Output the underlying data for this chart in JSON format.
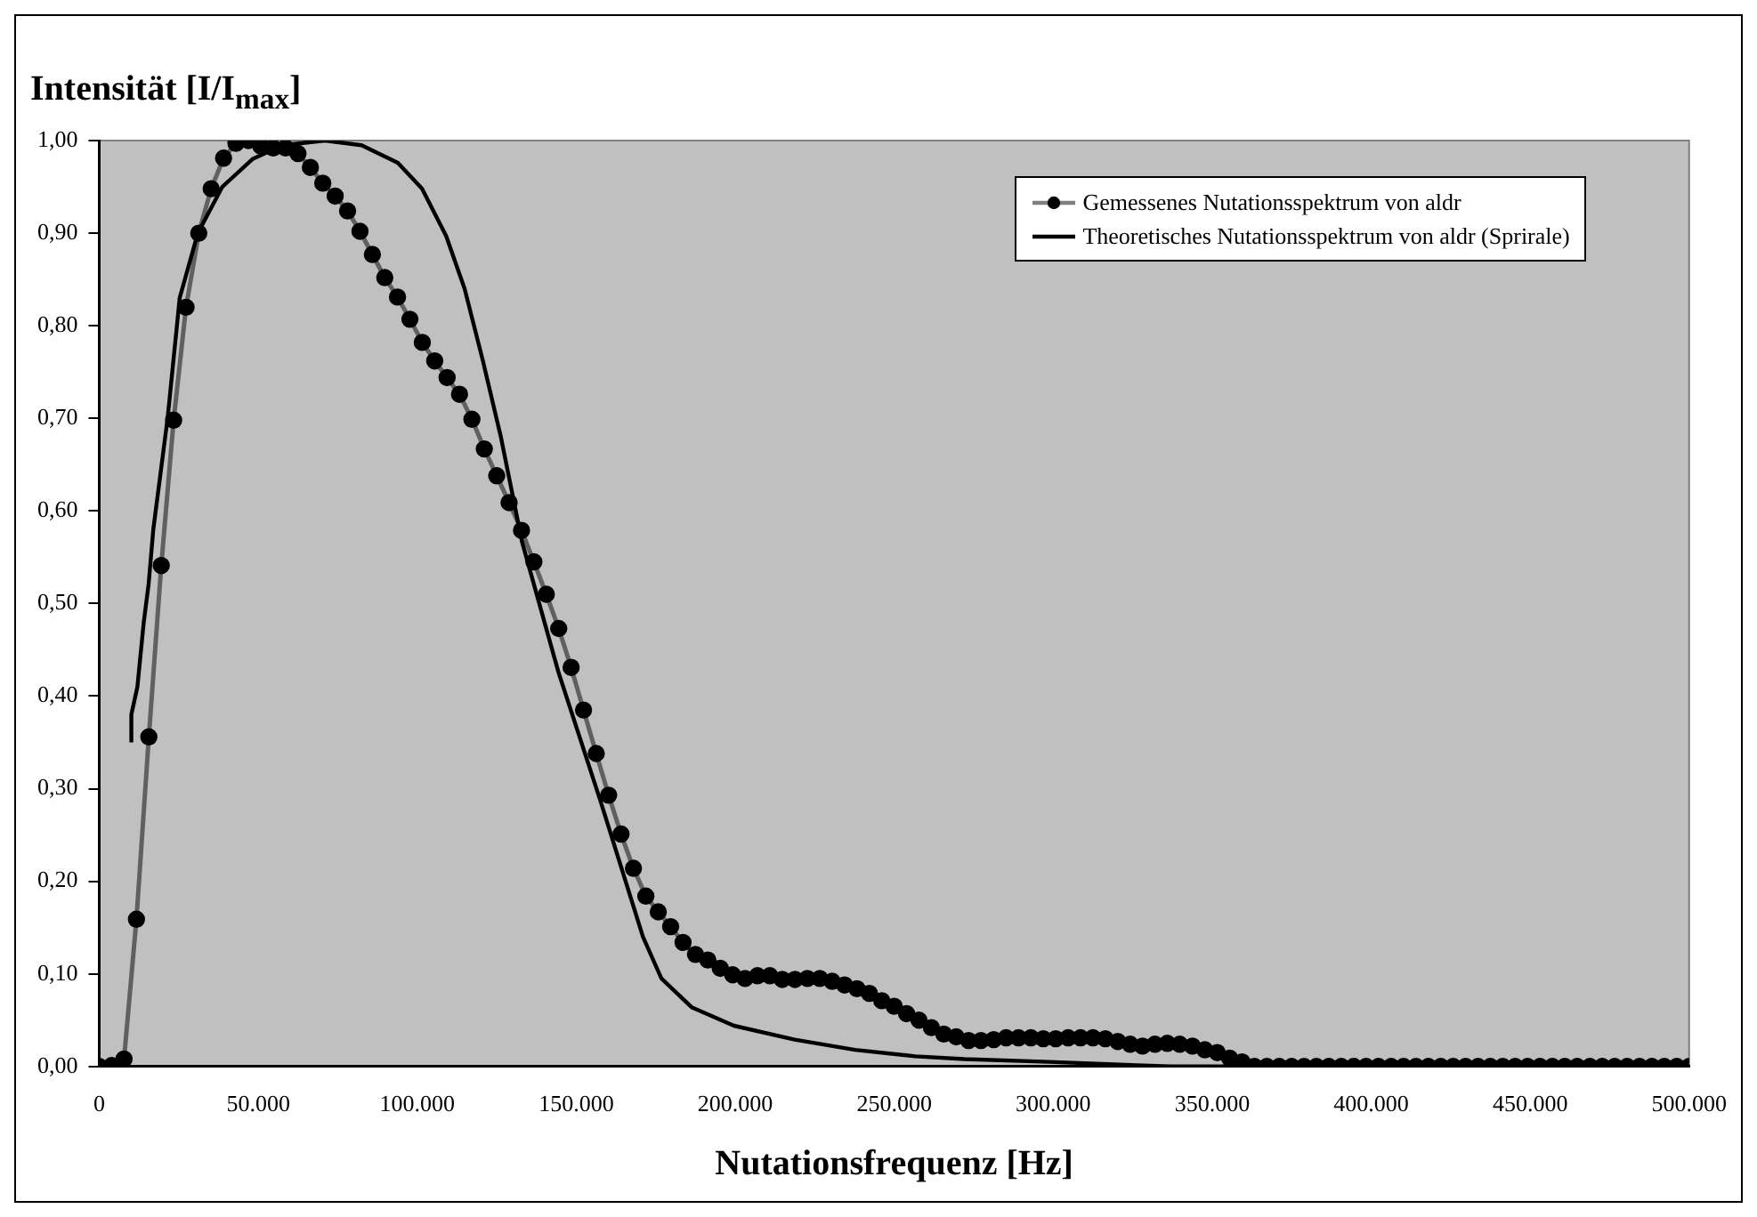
{
  "chart_data": {
    "type": "line",
    "ylabel": "Intensität [I/I$_{max}$]",
    "xlabel": "Nutationsfrequenz [Hz]",
    "xlim": [
      0,
      500000
    ],
    "xticks": [
      0,
      {
        "value": 50000,
        "label": "50.000"
      },
      {
        "value": 100000,
        "label": "100.000"
      },
      {
        "value": 150000,
        "label": "150.000"
      },
      {
        "value": 200000,
        "label": "200.000"
      },
      {
        "value": 250000,
        "label": "250.000"
      },
      {
        "value": 300000,
        "label": "300.000"
      },
      {
        "value": 350000,
        "label": "350.000"
      },
      {
        "value": 400000,
        "label": "400.000"
      },
      {
        "value": 450000,
        "label": "450.000"
      },
      {
        "value": 500000,
        "label": "500.000"
      }
    ],
    "ylim": [
      0,
      1
    ],
    "yticks": [
      {
        "value": 0,
        "label": "0,00"
      },
      {
        "value": 0.1,
        "label": "0,10"
      },
      {
        "value": 0.2,
        "label": "0,20"
      },
      {
        "value": 0.3,
        "label": "0,30"
      },
      {
        "value": 0.4,
        "label": "0,40"
      },
      {
        "value": 0.5,
        "label": "0,50"
      },
      {
        "value": 0.6,
        "label": "0,60"
      },
      {
        "value": 0.7,
        "label": "0,70"
      },
      {
        "value": 0.8,
        "label": "0,80"
      },
      {
        "value": 0.9,
        "label": "0,90"
      },
      {
        "value": 1,
        "label": "1,00"
      }
    ],
    "grid": false,
    "legend": "top right",
    "line_style": "solid",
    "series": [
      {
        "name": "Gemessenes Nutationsspektrum von aldr",
        "color": "#000000",
        "marker": "circle",
        "x": [
          0,
          3900,
          7800,
          11700,
          15600,
          19500,
          23400,
          27300,
          31300,
          35200,
          39100,
          43000,
          46900,
          50800,
          54700,
          58600,
          62500,
          66400,
          70300,
          74200,
          78100,
          82000,
          85900,
          89800,
          93800,
          97700,
          101600,
          105500,
          109400,
          113300,
          117200,
          121100,
          125000,
          128900,
          132800,
          136700,
          140600,
          144500,
          148400,
          152300,
          156300,
          160200,
          164100,
          168000,
          171900,
          175800,
          179700,
          183600,
          187500,
          191400,
          195300,
          199200,
          203100,
          207000,
          210900,
          214800,
          218800,
          222700,
          226600,
          230500,
          234400,
          238300,
          242200,
          246100,
          250000,
          253900,
          257800,
          261700,
          265600,
          269500,
          273400,
          277300,
          281300,
          285200,
          289100,
          293000,
          296900,
          300800,
          304700,
          308600,
          312500,
          316400,
          320300,
          324200,
          328100,
          332000,
          335900,
          339800,
          343800,
          347700,
          351600,
          355500,
          359400,
          363300,
          367200,
          371100,
          375000,
          378900,
          382800,
          386700,
          390600,
          394500,
          398400,
          402300,
          406300,
          410200,
          414100,
          418000,
          421900,
          425800,
          429700,
          433600,
          437500,
          441400,
          445300,
          449200,
          453100,
          457000,
          460900,
          464800,
          468800,
          472700,
          476600,
          480500,
          484400,
          488300,
          492200,
          496100,
          500000
        ],
        "values": [
          0,
          0.001,
          0.008,
          0.159,
          0.356,
          0.541,
          0.698,
          0.82,
          0.9,
          0.948,
          0.981,
          0.997,
          1.0,
          0.994,
          0.992,
          0.992,
          0.986,
          0.971,
          0.954,
          0.94,
          0.924,
          0.902,
          0.877,
          0.852,
          0.831,
          0.807,
          0.782,
          0.762,
          0.744,
          0.726,
          0.699,
          0.667,
          0.638,
          0.609,
          0.579,
          0.545,
          0.51,
          0.473,
          0.431,
          0.385,
          0.338,
          0.293,
          0.251,
          0.214,
          0.184,
          0.167,
          0.151,
          0.134,
          0.121,
          0.115,
          0.106,
          0.099,
          0.095,
          0.098,
          0.098,
          0.094,
          0.094,
          0.095,
          0.095,
          0.092,
          0.088,
          0.084,
          0.079,
          0.071,
          0.065,
          0.057,
          0.05,
          0.042,
          0.035,
          0.032,
          0.028,
          0.028,
          0.029,
          0.031,
          0.031,
          0.031,
          0.03,
          0.03,
          0.031,
          0.031,
          0.031,
          0.03,
          0.027,
          0.024,
          0.022,
          0.024,
          0.025,
          0.024,
          0.022,
          0.018,
          0.015,
          0.009,
          0.005,
          0,
          0,
          0,
          0,
          0,
          0,
          0,
          0,
          0,
          0,
          0,
          0,
          0,
          0,
          0,
          0,
          0,
          0,
          0,
          0,
          0,
          0,
          0,
          0,
          0,
          0,
          0,
          0,
          0,
          0,
          0,
          0,
          0,
          0,
          0,
          0
        ]
      },
      {
        "name": "Theoretisches Nutationsspektrum von aldr (Sprirale)",
        "color": "#000000",
        "marker": "none",
        "x": [
          10100,
          10100,
          12000,
          14000,
          15500,
          17000,
          21500,
          25300,
          31000,
          38700,
          48200,
          57700,
          71000,
          82500,
          93900,
          101500,
          109100,
          114900,
          120600,
          126300,
          133000,
          144400,
          157700,
          171000,
          176800,
          186300,
          199600,
          218700,
          237700,
          256700,
          272000,
          298700,
          336800,
          356000
        ],
        "values": [
          0.35,
          0.38,
          0.41,
          0.48,
          0.52,
          0.58,
          0.7,
          0.83,
          0.9,
          0.95,
          0.98,
          0.995,
          1.0,
          0.995,
          0.976,
          0.948,
          0.897,
          0.84,
          0.763,
          0.68,
          0.566,
          0.426,
          0.286,
          0.14,
          0.095,
          0.064,
          0.044,
          0.029,
          0.018,
          0.011,
          0.008,
          0.005,
          0,
          0
        ]
      }
    ]
  }
}
